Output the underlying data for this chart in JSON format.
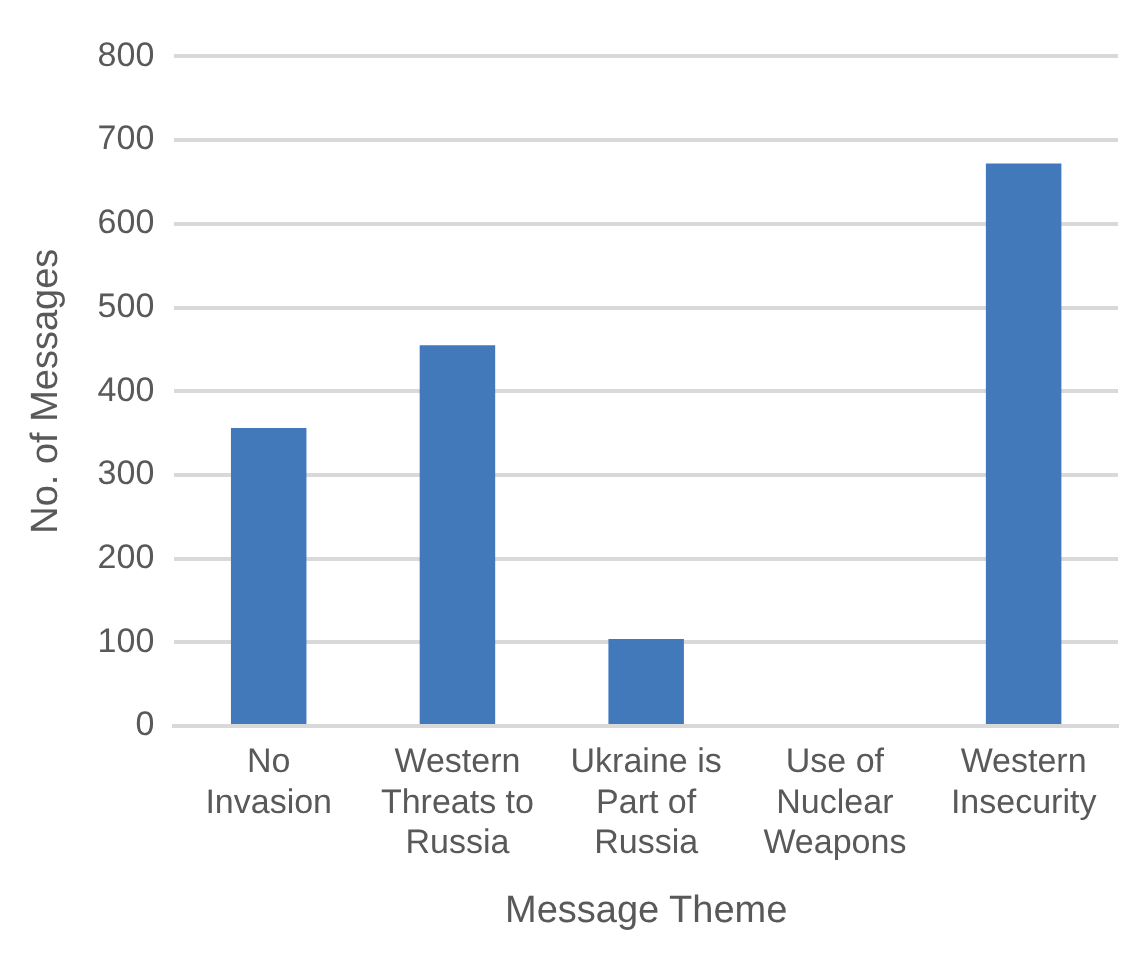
{
  "chart_data": {
    "type": "bar",
    "xlabel": "Message Theme",
    "ylabel": "No. of Messages",
    "categories": [
      "No Invasion",
      "Western Threats to Russia",
      "Ukraine is Part of Russia",
      "Use of Nuclear Weapons",
      "Western Insecurity"
    ],
    "values": [
      356,
      455,
      104,
      0,
      672
    ],
    "color": "#4179bb",
    "ylim": [
      0,
      800
    ],
    "yticks": [
      0,
      100,
      200,
      300,
      400,
      500,
      600,
      700,
      800
    ],
    "grid": "y"
  }
}
